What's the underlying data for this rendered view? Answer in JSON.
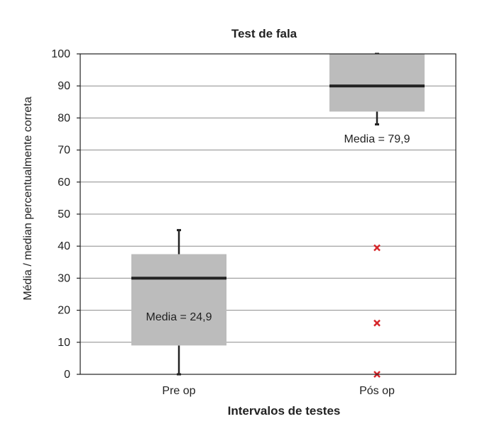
{
  "chart_data": {
    "type": "box",
    "title": "Test de fala",
    "xlabel": "Intervalos de testes",
    "ylabel": "Média / median percentualmente correta",
    "ylim": [
      0,
      100
    ],
    "yticks": [
      0,
      10,
      20,
      30,
      40,
      50,
      60,
      70,
      80,
      90,
      100
    ],
    "grid": true,
    "categories": [
      "Pre op",
      "Pós op"
    ],
    "boxes": [
      {
        "category": "Pre op",
        "whisker_low": 0,
        "q1": 9,
        "median": 30,
        "q3": 37.5,
        "whisker_high": 45,
        "mean_label": "Media = 24,9",
        "outliers": []
      },
      {
        "category": "Pós op",
        "whisker_low": 78,
        "q1": 82,
        "median": 90,
        "q3": 100,
        "whisker_high": 100,
        "mean_label": "Media = 79,9",
        "outliers": [
          39.5,
          16,
          0
        ]
      }
    ],
    "colors": {
      "box_fill": "#bcbcbc",
      "median_line": "#222222",
      "whisker": "#222222",
      "grid": "#8c8c8c",
      "outlier": "#d6262a"
    }
  }
}
